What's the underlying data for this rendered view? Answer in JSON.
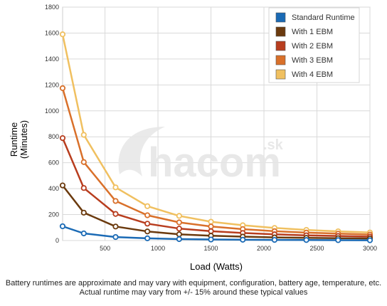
{
  "chart_data": {
    "type": "line",
    "title": "",
    "xlabel": "Load (Watts)",
    "ylabel": [
      "Runtime",
      "(Minutes)"
    ],
    "xlim": [
      100,
      3000
    ],
    "ylim": [
      0,
      1800
    ],
    "x_ticks": [
      500,
      1000,
      1500,
      2000,
      2500,
      3000
    ],
    "y_ticks": [
      0,
      200,
      400,
      600,
      800,
      1000,
      1200,
      1400,
      1600,
      1800
    ],
    "grid": true,
    "legend_position": "top-right",
    "x": [
      100,
      300,
      600,
      900,
      1200,
      1500,
      1800,
      2100,
      2400,
      2700,
      3000
    ],
    "series": [
      {
        "name": "Standard Runtime",
        "color": "#1a6ab5",
        "values": [
          110,
          55,
          27,
          17,
          11,
          8,
          6,
          5,
          4,
          3,
          2
        ]
      },
      {
        "name": "With 1 EBM",
        "color": "#6b3a0e",
        "values": [
          425,
          215,
          108,
          70,
          48,
          37,
          30,
          24,
          21,
          18,
          16
        ]
      },
      {
        "name": "With 2 EBM",
        "color": "#b83d1e",
        "values": [
          790,
          405,
          205,
          130,
          92,
          72,
          58,
          48,
          40,
          35,
          30
        ]
      },
      {
        "name": "With 3 EBM",
        "color": "#d9702a",
        "values": [
          1175,
          605,
          305,
          195,
          140,
          108,
          88,
          72,
          61,
          53,
          46
        ]
      },
      {
        "name": "With 4 EBM",
        "color": "#f0c060",
        "values": [
          1590,
          815,
          410,
          265,
          190,
          145,
          118,
          97,
          82,
          71,
          62
        ]
      }
    ]
  },
  "watermark": {
    "brand": "hacom",
    "suffix": ".sk"
  },
  "footnote": {
    "line1": "Battery runtimes are approximate and may vary with equipment, configuration, battery age, temperature, etc.",
    "line2": "Actual runtime may vary from +/- 15% around these typical values"
  }
}
